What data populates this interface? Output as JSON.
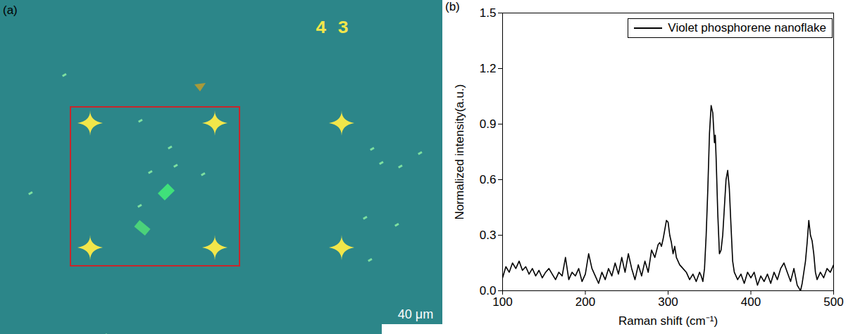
{
  "chart_data": {
    "type": "line",
    "panel_label": "(b)",
    "xlabel": "Raman shift (cm⁻¹)",
    "ylabel": "Normalized intensity(a.u.)",
    "xlim": [
      100,
      500
    ],
    "ylim": [
      0,
      1.5
    ],
    "xticks": [
      100,
      200,
      300,
      400,
      500
    ],
    "yticks": [
      {
        "value": 0,
        "label": "0.0"
      },
      0.3,
      0.6,
      0.9,
      1.2,
      1.5
    ],
    "legend": "upper right",
    "x": [
      100,
      104,
      108,
      112,
      116,
      120,
      124,
      128,
      132,
      136,
      140,
      144,
      148,
      152,
      156,
      160,
      164,
      168,
      172,
      176,
      180,
      184,
      188,
      192,
      196,
      200,
      204,
      208,
      212,
      216,
      220,
      224,
      228,
      232,
      236,
      240,
      244,
      248,
      252,
      256,
      260,
      264,
      268,
      272,
      276,
      280,
      284,
      288,
      290,
      292,
      294,
      296,
      298,
      300,
      302,
      304,
      306,
      308,
      310,
      314,
      318,
      322,
      326,
      330,
      334,
      338,
      340,
      342,
      344,
      346,
      348,
      350,
      352,
      354,
      356,
      357,
      358,
      360,
      362,
      364,
      366,
      368,
      370,
      372,
      374,
      376,
      378,
      380,
      384,
      388,
      392,
      396,
      400,
      404,
      408,
      412,
      416,
      420,
      424,
      428,
      432,
      436,
      440,
      444,
      448,
      452,
      456,
      460,
      462,
      464,
      466,
      468,
      470,
      472,
      474,
      476,
      478,
      480,
      484,
      488,
      492,
      496,
      500
    ],
    "series": [
      {
        "name": "Violet phosphorene nanoflake",
        "color": "#000000",
        "values": [
          0.07,
          0.13,
          0.1,
          0.15,
          0.12,
          0.16,
          0.11,
          0.13,
          0.09,
          0.12,
          0.08,
          0.11,
          0.07,
          0.1,
          0.12,
          0.09,
          0.06,
          0.1,
          0.08,
          0.18,
          0.06,
          0.1,
          0.08,
          0.12,
          0.05,
          0.09,
          0.2,
          0.12,
          0.08,
          0.04,
          0.1,
          0.06,
          0.12,
          0.08,
          0.15,
          0.09,
          0.18,
          0.1,
          0.2,
          0.12,
          0.06,
          0.14,
          0.08,
          0.16,
          0.1,
          0.22,
          0.18,
          0.25,
          0.26,
          0.24,
          0.28,
          0.33,
          0.38,
          0.37,
          0.3,
          0.26,
          0.2,
          0.24,
          0.18,
          0.14,
          0.12,
          0.1,
          0.06,
          0.09,
          0.05,
          0.1,
          0.08,
          0.05,
          0.12,
          0.3,
          0.55,
          0.85,
          1.0,
          0.96,
          0.8,
          0.84,
          0.72,
          0.42,
          0.2,
          0.22,
          0.3,
          0.45,
          0.6,
          0.65,
          0.55,
          0.35,
          0.16,
          0.1,
          0.06,
          0.09,
          0.04,
          0.1,
          0.07,
          0.1,
          0.03,
          0.08,
          0.05,
          0.09,
          0.04,
          0.1,
          0.06,
          0.12,
          0.15,
          0.1,
          0.05,
          0.12,
          0.03,
          0.0,
          0.04,
          0.1,
          0.16,
          0.26,
          0.38,
          0.3,
          0.27,
          0.2,
          0.1,
          0.06,
          0.1,
          0.07,
          0.12,
          0.1,
          0.14
        ]
      }
    ]
  },
  "image_panel": {
    "panel_label": "(a)",
    "marker_label": "4 3",
    "scale_bar": "40 μm"
  }
}
